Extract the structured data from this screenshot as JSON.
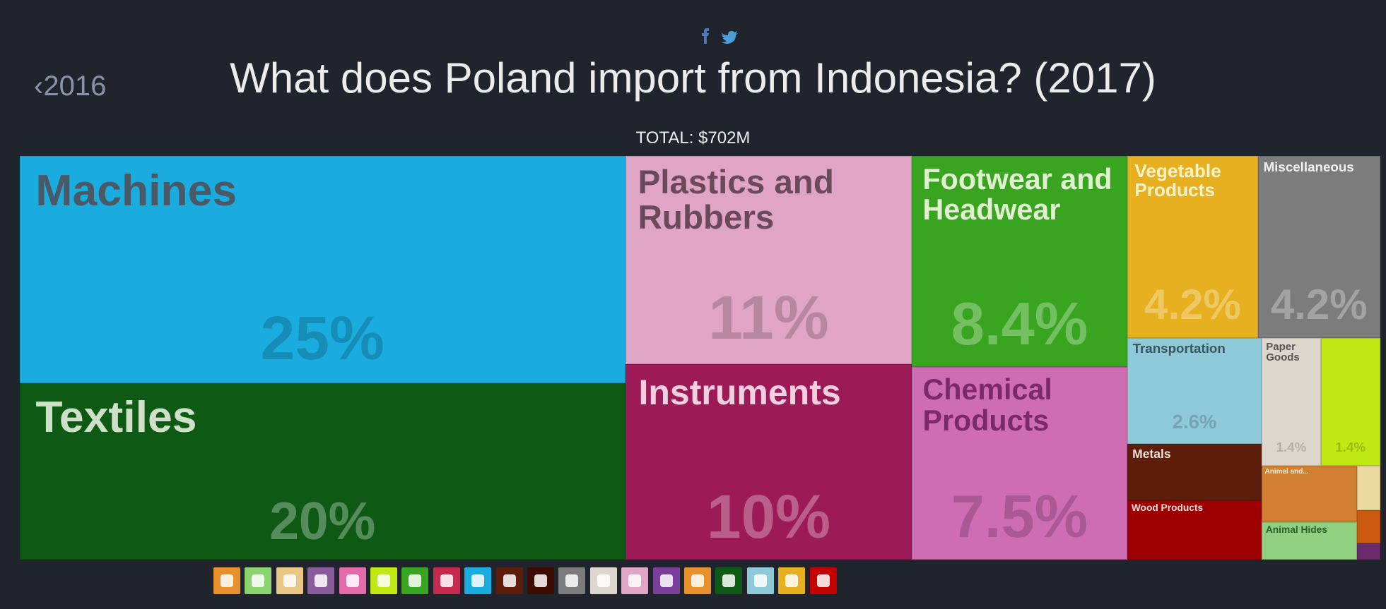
{
  "header": {
    "back_year": "2016",
    "title": "What does Poland import from Indonesia? (2017)",
    "total": "TOTAL: $702M"
  },
  "chart_data": {
    "type": "treemap",
    "categories": [
      "Machines",
      "Textiles",
      "Plastics and Rubbers",
      "Instruments",
      "Footwear and Headwear",
      "Chemical Products",
      "Vegetable Products",
      "Miscellaneous",
      "Transportation",
      "Paper Goods",
      null,
      "Metals",
      "Wood Products",
      "Animal and...",
      "Animal Hides",
      null,
      null,
      null
    ],
    "values": [
      25,
      20,
      11,
      10,
      8.4,
      7.5,
      4.2,
      4.2,
      2.6,
      1.4,
      1.4,
      1.4,
      1.4,
      1.0,
      0.6,
      0.2,
      0.14,
      0.07
    ],
    "value_labels": [
      "25%",
      "20%",
      "11%",
      "10%",
      "8.4%",
      "7.5%",
      "4.2%",
      "4.2%",
      "2.6%",
      "1.4%",
      "1.4%",
      null,
      null,
      null,
      null,
      null,
      null,
      null
    ],
    "colors": [
      "#1aacdf",
      "#0e5a15",
      "#e0a5c4",
      "#9c1b57",
      "#38a41f",
      "#cf6db4",
      "#e6b020",
      "#7c7c7c",
      "#8ec9d8",
      "#ddd6cc",
      "#c0e813",
      "#5c1e0a",
      "#9c0000",
      "#d08030",
      "#8fd180",
      "#ecd9a0",
      "#c95a10",
      "#6b2b6b"
    ]
  }
}
